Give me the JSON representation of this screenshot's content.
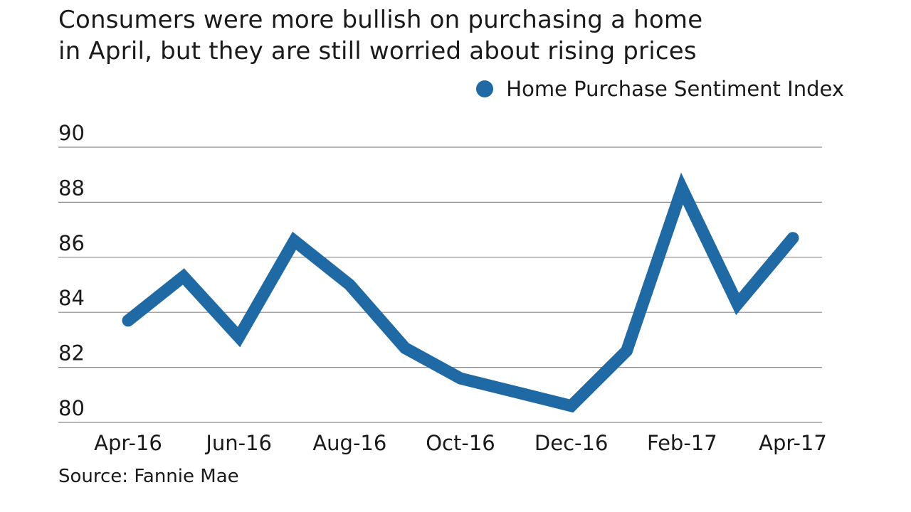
{
  "chart_data": {
    "type": "line",
    "title": "Consumers were more bullish on purchasing a home in April, but they are still worried about rising prices",
    "title_lines": [
      "Consumers were more bullish on purchasing a home",
      "in April, but they are still worried about rising prices"
    ],
    "categories": [
      "Apr-16",
      "May-16",
      "Jun-16",
      "Jul-16",
      "Aug-16",
      "Sep-16",
      "Oct-16",
      "Nov-16",
      "Dec-16",
      "Jan-17",
      "Feb-17",
      "Mar-17",
      "Apr-17"
    ],
    "x_tick_labels": [
      "Apr-16",
      "Jun-16",
      "Aug-16",
      "Oct-16",
      "Dec-16",
      "Feb-17",
      "Apr-17"
    ],
    "series": [
      {
        "name": "Home Purchase Sentiment Index",
        "color": "#1f6aa5",
        "values": [
          83.7,
          85.3,
          83.1,
          86.6,
          85.0,
          82.7,
          81.6,
          81.1,
          80.6,
          82.6,
          88.5,
          84.3,
          86.7
        ]
      }
    ],
    "ylim": [
      80,
      90
    ],
    "y_ticks": [
      80,
      82,
      84,
      86,
      88,
      90
    ],
    "xlabel": "",
    "ylabel": "",
    "legend": "top-right",
    "grid": true,
    "source": "Source: Fannie Mae"
  }
}
